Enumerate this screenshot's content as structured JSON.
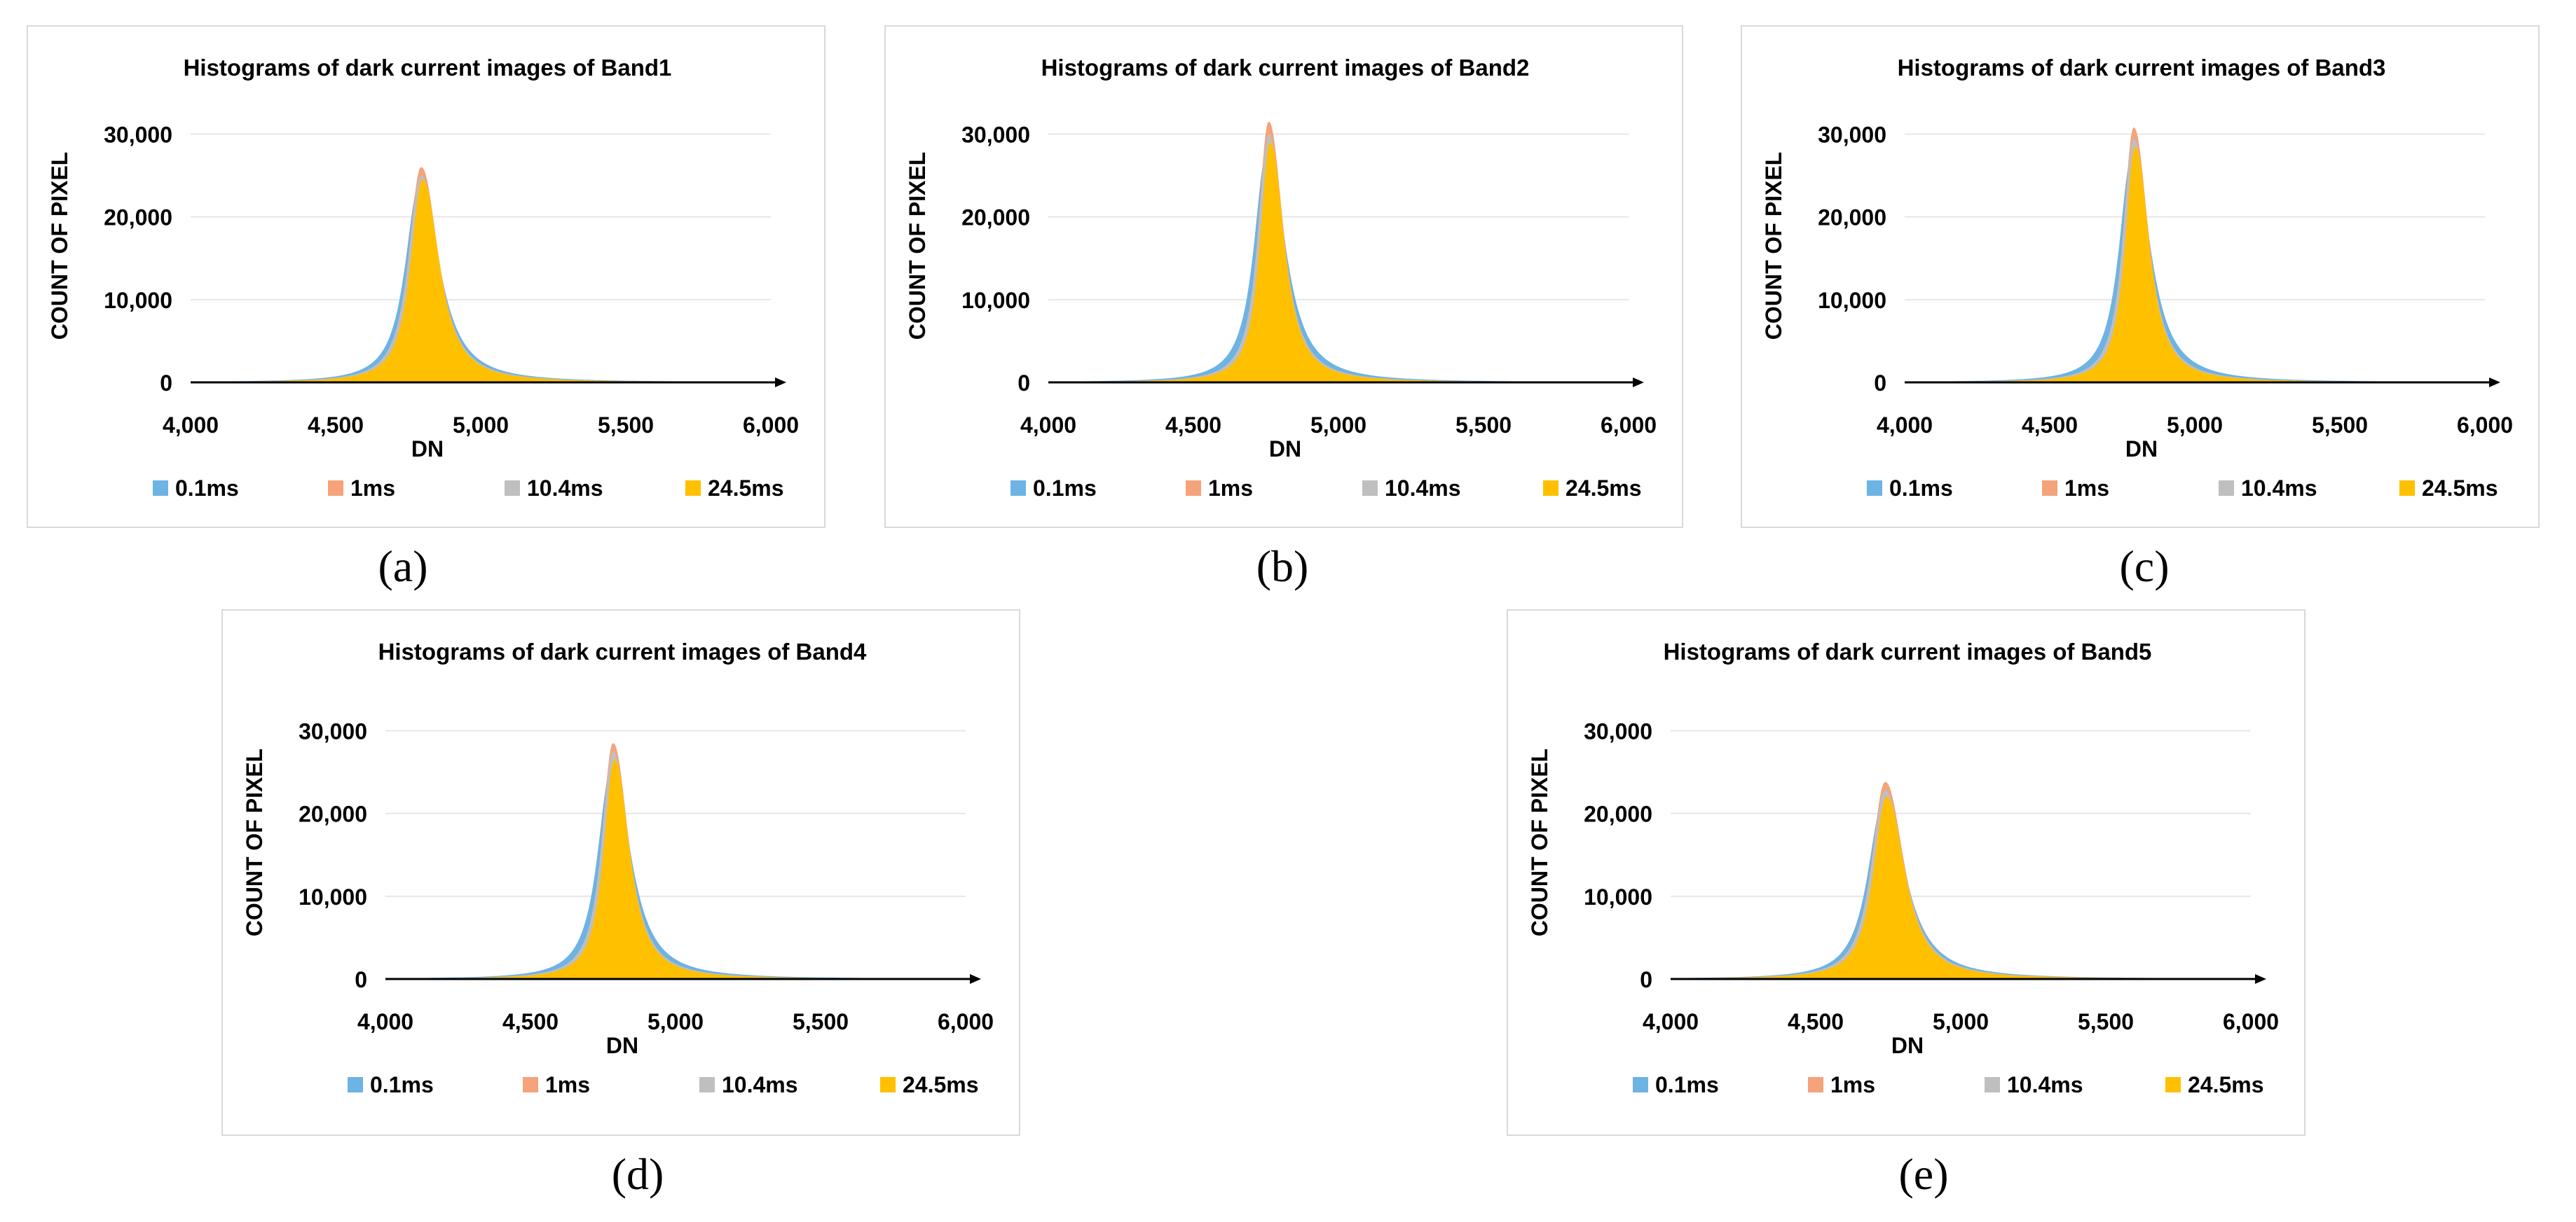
{
  "figure": {
    "legend_labels": [
      "0.1ms",
      "1ms",
      "10.4ms",
      "24.5ms"
    ],
    "colors": {
      "s01": "#6db3e4",
      "s1": "#f4a37a",
      "s104": "#bfbfbf",
      "s245": "#ffc000",
      "axis": "#000000",
      "grid": "#e6e6e6"
    }
  },
  "chart_data": [
    {
      "type": "area",
      "panel_label": "(a)",
      "title": "Histograms of dark current images of Band1",
      "xlabel": "DN",
      "ylabel": "COUNT OF PIXEL",
      "xlim": [
        4000,
        6000
      ],
      "ylim": [
        0,
        33000
      ],
      "xticks": [
        4000,
        4500,
        5000,
        5500,
        6000
      ],
      "xtick_labels": [
        "4,000",
        "4,500",
        "5,000",
        "5,500",
        "6,000"
      ],
      "yticks": [
        0,
        10000,
        20000,
        30000
      ],
      "ytick_labels": [
        "0",
        "10,000",
        "20,000",
        "30,000"
      ],
      "legend_position": "bottom",
      "series": [
        {
          "name": "0.1ms",
          "peak_x": 4790,
          "peak_y": 24000,
          "width": 60
        },
        {
          "name": "1ms",
          "peak_x": 4795,
          "peak_y": 26000,
          "width": 52
        },
        {
          "name": "10.4ms",
          "peak_x": 4795,
          "peak_y": 25000,
          "width": 53
        },
        {
          "name": "24.5ms",
          "peak_x": 4800,
          "peak_y": 24500,
          "width": 50
        }
      ]
    },
    {
      "type": "area",
      "panel_label": "(b)",
      "title": "Histograms of dark current images of Band2",
      "xlabel": "DN",
      "ylabel": "COUNT OF PIXEL",
      "xlim": [
        4000,
        6000
      ],
      "ylim": [
        0,
        33000
      ],
      "xticks": [
        4000,
        4500,
        5000,
        5500,
        6000
      ],
      "xtick_labels": [
        "4,000",
        "4,500",
        "5,000",
        "5,500",
        "6,000"
      ],
      "yticks": [
        0,
        10000,
        20000,
        30000
      ],
      "ytick_labels": [
        "0",
        "10,000",
        "20,000",
        "30,000"
      ],
      "legend_position": "bottom",
      "series": [
        {
          "name": "0.1ms",
          "peak_x": 4755,
          "peak_y": 28000,
          "width": 55
        },
        {
          "name": "1ms",
          "peak_x": 4760,
          "peak_y": 31500,
          "width": 44
        },
        {
          "name": "10.4ms",
          "peak_x": 4760,
          "peak_y": 30000,
          "width": 45
        },
        {
          "name": "24.5ms",
          "peak_x": 4765,
          "peak_y": 29000,
          "width": 42
        }
      ]
    },
    {
      "type": "area",
      "panel_label": "(c)",
      "title": "Histograms of dark current images of Band3",
      "xlabel": "DN",
      "ylabel": "COUNT OF PIXEL",
      "xlim": [
        4000,
        6000
      ],
      "ylim": [
        0,
        33000
      ],
      "xticks": [
        4000,
        4500,
        5000,
        5500,
        6000
      ],
      "xtick_labels": [
        "4,000",
        "4,500",
        "5,000",
        "5,500",
        "6,000"
      ],
      "yticks": [
        0,
        10000,
        20000,
        30000
      ],
      "ytick_labels": [
        "0",
        "10,000",
        "20,000",
        "30,000"
      ],
      "legend_position": "bottom",
      "series": [
        {
          "name": "0.1ms",
          "peak_x": 4785,
          "peak_y": 27500,
          "width": 55
        },
        {
          "name": "1ms",
          "peak_x": 4790,
          "peak_y": 30800,
          "width": 44
        },
        {
          "name": "10.4ms",
          "peak_x": 4790,
          "peak_y": 29500,
          "width": 45
        },
        {
          "name": "24.5ms",
          "peak_x": 4795,
          "peak_y": 28500,
          "width": 42
        }
      ]
    },
    {
      "type": "area",
      "panel_label": "(d)",
      "title": "Histograms of dark current images of Band4",
      "xlabel": "DN",
      "ylabel": "COUNT OF PIXEL",
      "xlim": [
        4000,
        6000
      ],
      "ylim": [
        0,
        33000
      ],
      "xticks": [
        4000,
        4500,
        5000,
        5500,
        6000
      ],
      "xtick_labels": [
        "4,000",
        "4,500",
        "5,000",
        "5,500",
        "6,000"
      ],
      "yticks": [
        0,
        10000,
        20000,
        30000
      ],
      "ytick_labels": [
        "0",
        "10,000",
        "20,000",
        "30,000"
      ],
      "legend_position": "bottom",
      "series": [
        {
          "name": "0.1ms",
          "peak_x": 4780,
          "peak_y": 25500,
          "width": 58
        },
        {
          "name": "1ms",
          "peak_x": 4785,
          "peak_y": 28500,
          "width": 47
        },
        {
          "name": "10.4ms",
          "peak_x": 4785,
          "peak_y": 27500,
          "width": 48
        },
        {
          "name": "24.5ms",
          "peak_x": 4790,
          "peak_y": 26500,
          "width": 45
        }
      ]
    },
    {
      "type": "area",
      "panel_label": "(e)",
      "title": "Histograms of dark current images of Band5",
      "xlabel": "DN",
      "ylabel": "COUNT OF PIXEL",
      "xlim": [
        4000,
        6000
      ],
      "ylim": [
        0,
        33000
      ],
      "xticks": [
        4000,
        4500,
        5000,
        5500,
        6000
      ],
      "xtick_labels": [
        "4,000",
        "4,500",
        "5,000",
        "5,500",
        "6,000"
      ],
      "yticks": [
        0,
        10000,
        20000,
        30000
      ],
      "ytick_labels": [
        "0",
        "10,000",
        "20,000",
        "30,000"
      ],
      "legend_position": "bottom",
      "series": [
        {
          "name": "0.1ms",
          "peak_x": 4735,
          "peak_y": 21500,
          "width": 66
        },
        {
          "name": "1ms",
          "peak_x": 4740,
          "peak_y": 23800,
          "width": 57
        },
        {
          "name": "10.4ms",
          "peak_x": 4740,
          "peak_y": 22800,
          "width": 58
        },
        {
          "name": "24.5ms",
          "peak_x": 4745,
          "peak_y": 22000,
          "width": 55
        }
      ]
    }
  ]
}
